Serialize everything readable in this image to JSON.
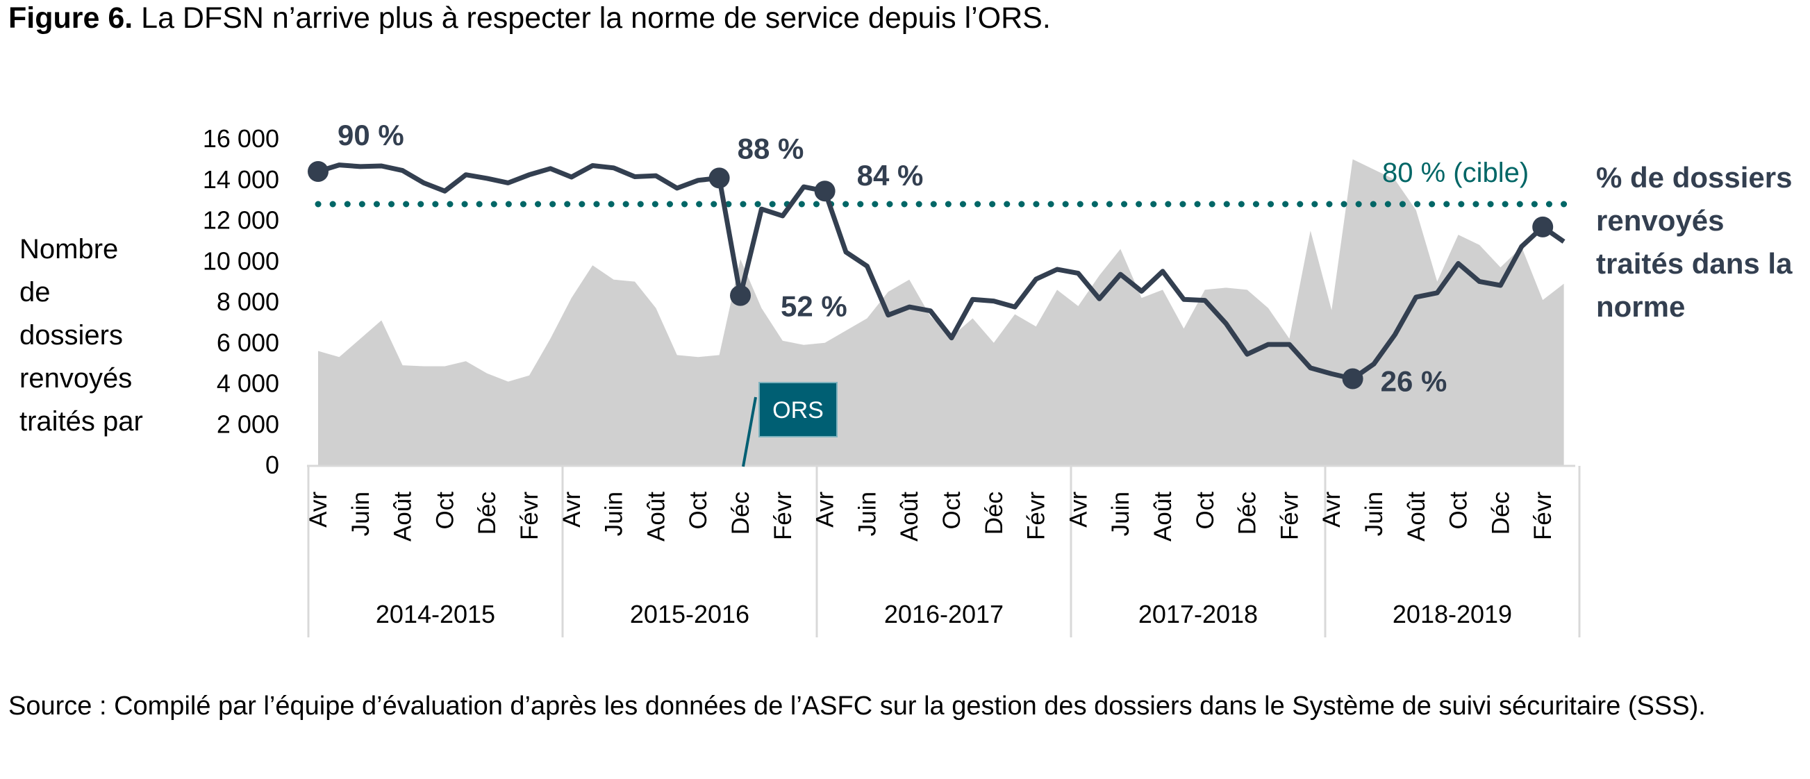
{
  "title": {
    "label": "Figure 6.",
    "text": " La DFSN n’arrive plus à respecter la norme de service depuis l’ORS."
  },
  "source": "Source : Compilé par l’équipe d’évaluation d’après les données de l’ASFC sur la gestion des dossiers dans le Système de suivi sécuritaire (SSS).",
  "colors": {
    "area": "#d0d0d0",
    "line": "#333f50",
    "target": "#006666",
    "ors_box": "#005f73",
    "axis": "#d9d9d9"
  },
  "chart_data": {
    "type": "area",
    "ylabel": [
      "Nombre",
      "de",
      "dossiers",
      "renvoyés",
      "traités par"
    ],
    "y_ticks": [
      "16 000",
      "14 000",
      "12 000",
      "10 000",
      "8 000",
      "6 000",
      "4 000",
      "2 000",
      "0"
    ],
    "ylim": [
      0,
      16000
    ],
    "secondary_ylim_pct": [
      0,
      100
    ],
    "month_labels": [
      "Avr",
      "Juin",
      "Août",
      "Oct",
      "Déc",
      "Févr"
    ],
    "years": [
      "2014-2015",
      "2015-2016",
      "2016-2017",
      "2017-2018",
      "2018-2019"
    ],
    "grid": false,
    "series": [
      {
        "kind": "area",
        "values": [
          5600,
          5300,
          6200,
          7100,
          4900,
          4850,
          4850,
          5100,
          4500,
          4100,
          4400,
          6200,
          8200,
          9800,
          9100,
          9000,
          7700,
          5400,
          5300,
          5400,
          10100,
          7700,
          6100,
          5900,
          6000,
          6600,
          7200,
          8500,
          9100,
          7300,
          6300,
          7200,
          6000,
          7400,
          6800,
          8600,
          7800,
          9300,
          10600,
          8200,
          8600,
          6700,
          8600,
          8700,
          8600,
          7700,
          6200,
          11500,
          7600,
          15000,
          14500,
          14000,
          12500,
          9000,
          11300,
          10800,
          9700,
          10700,
          8100,
          8900
        ]
      },
      {
        "name": "% de dossiers renvoyés traités dans la norme",
        "kind": "line",
        "values": [
          90,
          92,
          91.5,
          91.7,
          90.3,
          86.5,
          84,
          89,
          87.9,
          86.5,
          89,
          90.9,
          88.3,
          91.8,
          91.1,
          88.4,
          88.7,
          84.9,
          87.3,
          88,
          52,
          78.5,
          76.4,
          85.3,
          84,
          65.3,
          61,
          46,
          48.5,
          47.3,
          39,
          50.8,
          50.3,
          48.5,
          57,
          60,
          58.8,
          51,
          58.5,
          53.3,
          59.4,
          50.8,
          50.5,
          43.4,
          34,
          37,
          37,
          29.8,
          28,
          26.5,
          31,
          40,
          51.5,
          52.8,
          61.8,
          56.3,
          55.1,
          67,
          73,
          68.5
        ]
      }
    ],
    "target_pct": 80,
    "annotations": [
      {
        "text": "90 %",
        "index": 0
      },
      {
        "text": "88 %",
        "index": 19
      },
      {
        "text": "52 %",
        "index": 20
      },
      {
        "text": "84 %",
        "index": 24
      },
      {
        "text": "26 %",
        "index": 49
      }
    ],
    "target_label": "80 % (cible)",
    "series_label": [
      "% de dossiers",
      "renvoyés",
      "traités dans la",
      "norme"
    ],
    "event_label": "ORS"
  }
}
